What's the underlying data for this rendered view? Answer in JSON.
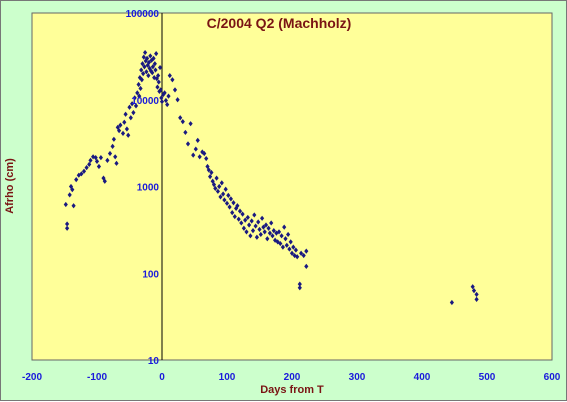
{
  "chart_data": {
    "type": "scatter",
    "title": "C/2004 Q2 (Machholz)",
    "xlabel": "Days from T",
    "ylabel": "Afrho (cm)",
    "xlim": [
      -200,
      600
    ],
    "ylim": [
      10,
      100000
    ],
    "y_scale": "log",
    "x_ticks": [
      "-200",
      "-100",
      "0",
      "100",
      "200",
      "300",
      "400",
      "500",
      "600"
    ],
    "y_ticks": [
      "10",
      "100",
      "1000",
      "10000",
      "100000"
    ],
    "grid": false,
    "vertical_reference_line_x": 0,
    "colors": {
      "frame_background": "#ccffcc",
      "plot_background": "#ffff99",
      "marker": "#1a1a80",
      "tick_labels": "#1a1adb",
      "title": "#7a1414"
    },
    "points": [
      [
        -148,
        620
      ],
      [
        -146,
        370
      ],
      [
        -146,
        330
      ],
      [
        -142,
        800
      ],
      [
        -140,
        1000
      ],
      [
        -138,
        920
      ],
      [
        -136,
        600
      ],
      [
        -132,
        1200
      ],
      [
        -128,
        1350
      ],
      [
        -124,
        1400
      ],
      [
        -120,
        1500
      ],
      [
        -116,
        1650
      ],
      [
        -112,
        1800
      ],
      [
        -110,
        2000
      ],
      [
        -106,
        2200
      ],
      [
        -102,
        2150
      ],
      [
        -100,
        1950
      ],
      [
        -97,
        1700
      ],
      [
        -94,
        2150
      ],
      [
        -90,
        1250
      ],
      [
        -88,
        1150
      ],
      [
        -84,
        2000
      ],
      [
        -80,
        2400
      ],
      [
        -76,
        2900
      ],
      [
        -74,
        3500
      ],
      [
        -72,
        2200
      ],
      [
        -70,
        1850
      ],
      [
        -68,
        4800
      ],
      [
        -66,
        4400
      ],
      [
        -64,
        5100
      ],
      [
        -60,
        4100
      ],
      [
        -58,
        5500
      ],
      [
        -56,
        6800
      ],
      [
        -54,
        4600
      ],
      [
        -52,
        3900
      ],
      [
        -50,
        8200
      ],
      [
        -48,
        6200
      ],
      [
        -46,
        9000
      ],
      [
        -44,
        7100
      ],
      [
        -42,
        10500
      ],
      [
        -40,
        8500
      ],
      [
        -38,
        12000
      ],
      [
        -36,
        15000
      ],
      [
        -35,
        11000
      ],
      [
        -34,
        18000
      ],
      [
        -33,
        13500
      ],
      [
        -32,
        22000
      ],
      [
        -31,
        17000
      ],
      [
        -30,
        26000
      ],
      [
        -29,
        20000
      ],
      [
        -28,
        31000
      ],
      [
        -27,
        24000
      ],
      [
        -26,
        35000
      ],
      [
        -25,
        28000
      ],
      [
        -24,
        21000
      ],
      [
        -23,
        30000
      ],
      [
        -22,
        25000
      ],
      [
        -21,
        19000
      ],
      [
        -20,
        27000
      ],
      [
        -19,
        23000
      ],
      [
        -18,
        32000
      ],
      [
        -17,
        21500
      ],
      [
        -16,
        28500
      ],
      [
        -15,
        20500
      ],
      [
        -14,
        24000
      ],
      [
        -13,
        30000
      ],
      [
        -12,
        18000
      ],
      [
        -11,
        26000
      ],
      [
        -10,
        22000
      ],
      [
        -9,
        34000
      ],
      [
        -8,
        17500
      ],
      [
        -7,
        14000
      ],
      [
        -6,
        19000
      ],
      [
        -5,
        16000
      ],
      [
        -4,
        12500
      ],
      [
        -3,
        23500
      ],
      [
        -2,
        13000
      ],
      [
        -1,
        10500
      ],
      [
        0,
        9500
      ],
      [
        2,
        11500
      ],
      [
        4,
        12000
      ],
      [
        6,
        9800
      ],
      [
        8,
        8800
      ],
      [
        10,
        11000
      ],
      [
        12,
        19000
      ],
      [
        16,
        17000
      ],
      [
        20,
        13000
      ],
      [
        24,
        10000
      ],
      [
        28,
        6200
      ],
      [
        32,
        5600
      ],
      [
        36,
        4200
      ],
      [
        40,
        3100
      ],
      [
        44,
        5300
      ],
      [
        48,
        2300
      ],
      [
        52,
        2700
      ],
      [
        55,
        3400
      ],
      [
        58,
        2200
      ],
      [
        62,
        2500
      ],
      [
        65,
        2400
      ],
      [
        68,
        2100
      ],
      [
        70,
        1700
      ],
      [
        72,
        1550
      ],
      [
        74,
        1300
      ],
      [
        76,
        1450
      ],
      [
        78,
        1150
      ],
      [
        80,
        1050
      ],
      [
        82,
        950
      ],
      [
        84,
        1250
      ],
      [
        86,
        880
      ],
      [
        88,
        1000
      ],
      [
        90,
        760
      ],
      [
        92,
        1100
      ],
      [
        94,
        820
      ],
      [
        96,
        700
      ],
      [
        98,
        930
      ],
      [
        100,
        640
      ],
      [
        102,
        790
      ],
      [
        104,
        580
      ],
      [
        106,
        720
      ],
      [
        108,
        500
      ],
      [
        110,
        650
      ],
      [
        112,
        450
      ],
      [
        114,
        560
      ],
      [
        116,
        600
      ],
      [
        118,
        420
      ],
      [
        120,
        520
      ],
      [
        122,
        380
      ],
      [
        124,
        480
      ],
      [
        126,
        330
      ],
      [
        128,
        410
      ],
      [
        130,
        300
      ],
      [
        132,
        440
      ],
      [
        134,
        360
      ],
      [
        136,
        270
      ],
      [
        138,
        400
      ],
      [
        140,
        310
      ],
      [
        142,
        470
      ],
      [
        144,
        350
      ],
      [
        146,
        260
      ],
      [
        148,
        390
      ],
      [
        150,
        320
      ],
      [
        152,
        280
      ],
      [
        154,
        430
      ],
      [
        156,
        340
      ],
      [
        158,
        300
      ],
      [
        160,
        360
      ],
      [
        162,
        250
      ],
      [
        164,
        330
      ],
      [
        166,
        290
      ],
      [
        168,
        380
      ],
      [
        170,
        270
      ],
      [
        172,
        310
      ],
      [
        174,
        240
      ],
      [
        176,
        290
      ],
      [
        178,
        230
      ],
      [
        180,
        300
      ],
      [
        182,
        220
      ],
      [
        184,
        270
      ],
      [
        186,
        200
      ],
      [
        188,
        340
      ],
      [
        190,
        250
      ],
      [
        192,
        210
      ],
      [
        194,
        280
      ],
      [
        196,
        190
      ],
      [
        198,
        230
      ],
      [
        200,
        170
      ],
      [
        202,
        200
      ],
      [
        204,
        160
      ],
      [
        206,
        185
      ],
      [
        208,
        155
      ],
      [
        212,
        75
      ],
      [
        212,
        68
      ],
      [
        214,
        170
      ],
      [
        218,
        160
      ],
      [
        222,
        120
      ],
      [
        222,
        180
      ],
      [
        446,
        46
      ],
      [
        478,
        70
      ],
      [
        480,
        63
      ],
      [
        484,
        57
      ],
      [
        484,
        50
      ]
    ]
  }
}
